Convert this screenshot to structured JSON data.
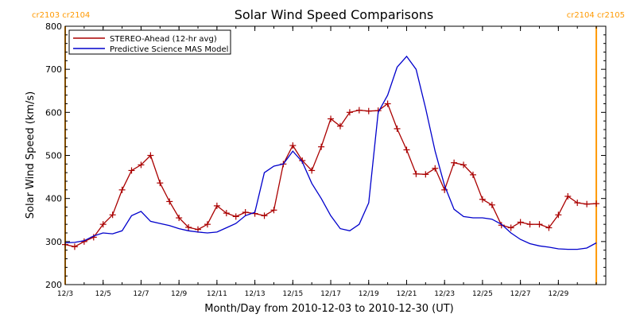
{
  "chart_data": {
    "type": "line",
    "title": "Solar Wind Speed Comparisons",
    "xlabel": "Month/Day from 2010-12-03 to 2010-12-30 (UT)",
    "ylabel": "Solar Wind Speed (km/s)",
    "ylim": [
      200,
      800
    ],
    "xlim": [
      "2010-12-03",
      "2010-12-31T12:00"
    ],
    "yticks": [
      "200",
      "300",
      "400",
      "500",
      "600",
      "700",
      "800"
    ],
    "xticks": [
      "12/3",
      "12/5",
      "12/7",
      "12/9",
      "12/11",
      "12/13",
      "12/15",
      "12/17",
      "12/19",
      "12/21",
      "12/23",
      "12/25",
      "12/27",
      "12/29"
    ],
    "xtick_dates": [
      "2010-12-03",
      "2010-12-05",
      "2010-12-07",
      "2010-12-09",
      "2010-12-11",
      "2010-12-13",
      "2010-12-15",
      "2010-12-17",
      "2010-12-19",
      "2010-12-21",
      "2010-12-23",
      "2010-12-25",
      "2010-12-27",
      "2010-12-29"
    ],
    "legend_position": "top-left",
    "rotation_markers": [
      {
        "date": "2010-12-03",
        "label": "cr2103 cr2104",
        "color": "#ff9900"
      },
      {
        "date": "2010-12-31",
        "label": "cr2104 cr2105",
        "color": "#ff9900"
      }
    ],
    "series": [
      {
        "name": "STEREO-Ahead (12-hr avg)",
        "color": "#aa0000",
        "marker": "plus",
        "x": [
          "2010-12-03T00:00",
          "2010-12-03T12:00",
          "2010-12-04T00:00",
          "2010-12-04T12:00",
          "2010-12-05T00:00",
          "2010-12-05T12:00",
          "2010-12-06T00:00",
          "2010-12-06T12:00",
          "2010-12-07T00:00",
          "2010-12-07T12:00",
          "2010-12-08T00:00",
          "2010-12-08T12:00",
          "2010-12-09T00:00",
          "2010-12-09T12:00",
          "2010-12-10T00:00",
          "2010-12-10T12:00",
          "2010-12-11T00:00",
          "2010-12-11T12:00",
          "2010-12-12T00:00",
          "2010-12-12T12:00",
          "2010-12-13T00:00",
          "2010-12-13T12:00",
          "2010-12-14T00:00",
          "2010-12-14T12:00",
          "2010-12-15T00:00",
          "2010-12-15T12:00",
          "2010-12-16T00:00",
          "2010-12-16T12:00",
          "2010-12-17T00:00",
          "2010-12-17T12:00",
          "2010-12-18T00:00",
          "2010-12-18T12:00",
          "2010-12-19T00:00",
          "2010-12-19T12:00",
          "2010-12-20T00:00",
          "2010-12-20T12:00",
          "2010-12-21T00:00",
          "2010-12-21T12:00",
          "2010-12-22T00:00",
          "2010-12-22T12:00",
          "2010-12-23T00:00",
          "2010-12-23T12:00",
          "2010-12-24T00:00",
          "2010-12-24T12:00",
          "2010-12-25T00:00",
          "2010-12-25T12:00",
          "2010-12-26T00:00",
          "2010-12-26T12:00",
          "2010-12-27T00:00",
          "2010-12-27T12:00",
          "2010-12-28T00:00",
          "2010-12-28T12:00",
          "2010-12-29T00:00",
          "2010-12-29T12:00",
          "2010-12-30T00:00",
          "2010-12-30T12:00",
          "2010-12-31T00:00"
        ],
        "y": [
          293,
          288,
          300,
          310,
          340,
          362,
          420,
          465,
          478,
          500,
          436,
          393,
          355,
          333,
          328,
          340,
          383,
          366,
          358,
          368,
          365,
          360,
          373,
          480,
          523,
          488,
          465,
          520,
          585,
          568,
          600,
          605,
          603,
          604,
          620,
          562,
          513,
          457,
          456,
          470,
          420,
          483,
          478,
          455,
          398,
          385,
          338,
          332,
          345,
          340,
          340,
          332,
          362,
          405,
          390,
          387,
          388
        ]
      },
      {
        "name": "Predictive Science MAS Model",
        "color": "#0000cc",
        "marker": "none",
        "x": [
          "2010-12-03T00:00",
          "2010-12-03T12:00",
          "2010-12-04T00:00",
          "2010-12-04T12:00",
          "2010-12-05T00:00",
          "2010-12-05T12:00",
          "2010-12-06T00:00",
          "2010-12-06T12:00",
          "2010-12-07T00:00",
          "2010-12-07T12:00",
          "2010-12-08T00:00",
          "2010-12-08T12:00",
          "2010-12-09T00:00",
          "2010-12-09T12:00",
          "2010-12-10T00:00",
          "2010-12-10T12:00",
          "2010-12-11T00:00",
          "2010-12-11T12:00",
          "2010-12-12T00:00",
          "2010-12-12T12:00",
          "2010-12-13T00:00",
          "2010-12-13T12:00",
          "2010-12-14T00:00",
          "2010-12-14T12:00",
          "2010-12-15T00:00",
          "2010-12-15T12:00",
          "2010-12-16T00:00",
          "2010-12-16T12:00",
          "2010-12-17T00:00",
          "2010-12-17T12:00",
          "2010-12-18T00:00",
          "2010-12-18T12:00",
          "2010-12-19T00:00",
          "2010-12-19T12:00",
          "2010-12-20T00:00",
          "2010-12-20T12:00",
          "2010-12-21T00:00",
          "2010-12-21T12:00",
          "2010-12-22T00:00",
          "2010-12-22T12:00",
          "2010-12-23T00:00",
          "2010-12-23T12:00",
          "2010-12-24T00:00",
          "2010-12-24T12:00",
          "2010-12-25T00:00",
          "2010-12-25T12:00",
          "2010-12-26T00:00",
          "2010-12-26T12:00",
          "2010-12-27T00:00",
          "2010-12-27T12:00",
          "2010-12-28T00:00",
          "2010-12-28T12:00",
          "2010-12-29T00:00",
          "2010-12-29T12:00",
          "2010-12-30T00:00",
          "2010-12-30T12:00",
          "2010-12-31T00:00"
        ],
        "y": [
          297,
          298,
          302,
          313,
          320,
          318,
          325,
          360,
          370,
          347,
          342,
          337,
          330,
          325,
          322,
          320,
          322,
          332,
          342,
          360,
          368,
          460,
          475,
          480,
          510,
          485,
          435,
          400,
          360,
          330,
          325,
          340,
          390,
          600,
          640,
          705,
          730,
          700,
          610,
          510,
          430,
          375,
          358,
          355,
          355,
          352,
          340,
          320,
          305,
          295,
          290,
          287,
          283,
          282,
          282,
          285,
          297
        ]
      }
    ]
  }
}
